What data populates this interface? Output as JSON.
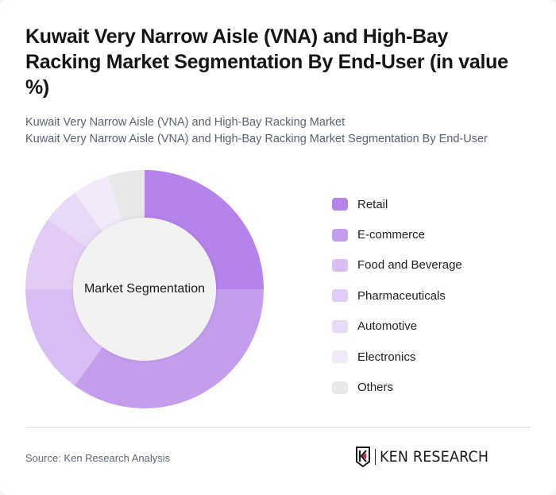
{
  "header": {
    "title": "Kuwait Very Narrow Aisle (VNA) and High-Bay Racking Market Segmentation By End-User (in value %)",
    "subtitle_line1": "Kuwait Very Narrow Aisle (VNA) and High-Bay Racking Market",
    "subtitle_line2": "Kuwait Very Narrow Aisle (VNA) and High-Bay Racking Market Segmentation By End-User"
  },
  "chart": {
    "center_label": "Market Segmentation"
  },
  "legend": {
    "items": [
      {
        "label": "Retail",
        "color": "#b583ea"
      },
      {
        "label": "E-commerce",
        "color": "#c59ded"
      },
      {
        "label": "Food and Beverage",
        "color": "#d9bef5"
      },
      {
        "label": "Pharmaceuticals",
        "color": "#e2ccf6"
      },
      {
        "label": "Automotive",
        "color": "#e9d9f8"
      },
      {
        "label": "Electronics",
        "color": "#f2eafb"
      },
      {
        "label": "Others",
        "color": "#e8e8e8"
      }
    ]
  },
  "footer": {
    "source": "Source: Ken Research Analysis",
    "logo_text": "KEN RESEARCH"
  },
  "chart_data": {
    "type": "pie",
    "subtype": "donut",
    "title": "Kuwait Very Narrow Aisle (VNA) and High-Bay Racking Market Segmentation By End-User (in value %)",
    "center_label": "Market Segmentation",
    "categories": [
      "Retail",
      "E-commerce",
      "Food and Beverage",
      "Pharmaceuticals",
      "Automotive",
      "Electronics",
      "Others"
    ],
    "values": [
      25,
      35,
      15,
      10,
      5,
      5,
      5
    ],
    "colors": [
      "#b583ea",
      "#c59ded",
      "#d9bef5",
      "#e2ccf6",
      "#e9d9f8",
      "#f2eafb",
      "#e8e8e8"
    ],
    "start_angle": "12 o'clock, clockwise",
    "legend_position": "right",
    "unit": "%"
  }
}
